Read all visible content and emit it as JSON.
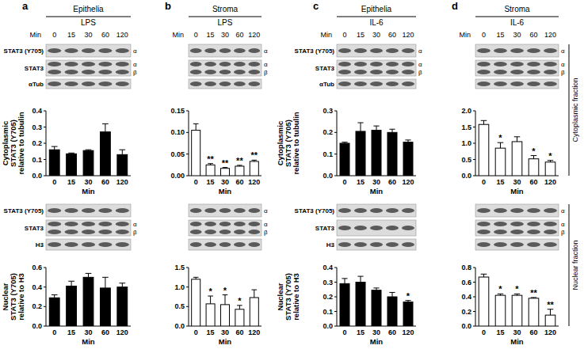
{
  "panels": [
    {
      "letter": "a",
      "tissue": "Epithelia",
      "treatment": "LPS",
      "time_label": "Min",
      "times": [
        0,
        15,
        30,
        60,
        120
      ],
      "cyto_blots": [
        {
          "label": "STAT3 (Y705)",
          "bands": [
            "α"
          ]
        },
        {
          "label": "STAT3",
          "bands": [
            "α",
            "β"
          ]
        },
        {
          "label": "αTub"
        }
      ],
      "nuc_blots": [
        {
          "label": "STAT3 (Y705)"
        },
        {
          "label": "STAT3",
          "bands": [
            "α",
            "β"
          ]
        },
        {
          "label": "H3"
        }
      ]
    },
    {
      "letter": "b",
      "tissue": "Stroma",
      "treatment": "LPS",
      "time_label": "Min",
      "times": [
        0,
        15,
        30,
        60,
        120
      ],
      "cyto_blots": [
        {
          "bands": [
            "α"
          ]
        },
        {
          "bands": [
            "α",
            "β"
          ]
        },
        {}
      ],
      "nuc_blots": [
        {
          "bands": [
            "α"
          ]
        },
        {
          "bands": [
            "α",
            "β"
          ]
        },
        {}
      ]
    },
    {
      "letter": "c",
      "tissue": "Epithelia",
      "treatment": "IL-6",
      "time_label": "Min",
      "times": [
        0,
        15,
        30,
        60,
        120
      ],
      "cyto_blots": [
        {
          "label": "STAT3 (Y705)",
          "bands": [
            "α"
          ]
        },
        {
          "label": "STAT3",
          "bands": [
            "α",
            "β"
          ]
        },
        {
          "label": "αTub"
        }
      ],
      "nuc_blots": [
        {
          "label": "STAT3 (Y705)"
        },
        {
          "label": "STAT3"
        },
        {
          "label": "H3"
        }
      ]
    },
    {
      "letter": "d",
      "tissue": "Stroma",
      "treatment": "IL-6",
      "time_label": "Min",
      "times": [
        0,
        15,
        30,
        60,
        120
      ],
      "cyto_blots": [
        {
          "bands": [
            "α"
          ]
        },
        {
          "bands": [
            "α",
            "β"
          ]
        },
        {}
      ],
      "nuc_blots": [
        {
          "bands": [
            "α"
          ]
        },
        {
          "bands": [
            "α",
            "β"
          ]
        },
        {}
      ]
    }
  ],
  "fractions": [
    "Cytoplasmic fraction",
    "Nuclear fraction"
  ],
  "chart_data": [
    {
      "type": "bar",
      "y_label": [
        "Cytoplasmic",
        "STAT3 (Y705)",
        "relative to tubulin"
      ],
      "x_label": "Min",
      "categories": [
        "0",
        "15",
        "30",
        "60",
        "120"
      ],
      "values": [
        0.16,
        0.135,
        0.155,
        0.27,
        0.13
      ],
      "errors": [
        0.02,
        0.005,
        0.005,
        0.05,
        0.03
      ],
      "annotations": [
        null,
        null,
        null,
        null,
        null
      ],
      "color": "#000000",
      "ylim": [
        0,
        0.4
      ],
      "yticks": [
        {
          "value": 0,
          "label": "0.0"
        },
        0.1,
        0.2,
        0.3,
        0.4
      ]
    },
    {
      "type": "bar",
      "y_label": [
        "Nuclear",
        "STAT3 (Y705)",
        "relative to H3"
      ],
      "x_label": "Min",
      "categories": [
        "0",
        "15",
        "30",
        "60",
        "120"
      ],
      "values": [
        0.29,
        0.41,
        0.5,
        0.39,
        0.4
      ],
      "errors": [
        0.03,
        0.05,
        0.04,
        0.11,
        0.04
      ],
      "annotations": [
        null,
        null,
        null,
        null,
        null
      ],
      "color": "#000000",
      "ylim": [
        0,
        0.6
      ],
      "yticks": [
        {
          "value": 0,
          "label": "0.0"
        },
        0.2,
        0.4,
        0.6
      ]
    },
    {
      "type": "bar",
      "x_label": "Min",
      "categories": [
        "0",
        "15",
        "30",
        "60",
        "120"
      ],
      "values": [
        0.105,
        0.025,
        0.017,
        0.022,
        0.033
      ],
      "errors": [
        0.015,
        0.003,
        0.002,
        0.002,
        0.003
      ],
      "annotations": [
        null,
        "**",
        "**",
        "**",
        "**"
      ],
      "color": "#ffffff",
      "ylim": [
        0,
        0.15
      ],
      "yticks": [
        {
          "value": 0,
          "label": "0.00"
        },
        0.05,
        {
          "value": 0.1,
          "label": "0.10"
        },
        0.15
      ]
    },
    {
      "type": "bar",
      "x_label": "Min",
      "categories": [
        "0",
        "15",
        "30",
        "60",
        "120"
      ],
      "values": [
        1.2,
        0.57,
        0.55,
        0.43,
        0.73
      ],
      "errors": [
        0.05,
        0.2,
        0.25,
        0.1,
        0.2
      ],
      "annotations": [
        null,
        "*",
        "*",
        "*",
        null
      ],
      "color": "#ffffff",
      "ylim": [
        0,
        1.5
      ],
      "yticks": [
        {
          "value": 0,
          "label": "0.0"
        },
        0.5,
        {
          "value": 1,
          "label": "1.0"
        },
        1.5
      ]
    },
    {
      "type": "bar",
      "y_label": [
        "Cytoplasmic",
        "STAT3 (Y705)",
        "relative to tubulin"
      ],
      "x_label": "Min",
      "categories": [
        "0",
        "15",
        "30",
        "60",
        "120"
      ],
      "values": [
        0.15,
        0.205,
        0.21,
        0.2,
        0.155
      ],
      "errors": [
        0.005,
        0.04,
        0.02,
        0.015,
        0.01
      ],
      "annotations": [
        null,
        null,
        null,
        null,
        null
      ],
      "color": "#000000",
      "ylim": [
        0,
        0.3
      ],
      "yticks": [
        {
          "value": 0,
          "label": "0.0"
        },
        0.1,
        0.2,
        0.3
      ]
    },
    {
      "type": "bar",
      "y_label": [
        "Nuclear",
        "STAT3 (Y705)",
        "relative to H3"
      ],
      "x_label": "Min",
      "categories": [
        "0",
        "15",
        "30",
        "60",
        "120"
      ],
      "values": [
        0.29,
        0.3,
        0.245,
        0.2,
        0.165
      ],
      "errors": [
        0.035,
        0.04,
        0.015,
        0.03,
        0.01
      ],
      "annotations": [
        null,
        null,
        null,
        null,
        "*"
      ],
      "color": "#000000",
      "ylim": [
        0,
        0.4
      ],
      "yticks": [
        {
          "value": 0,
          "label": "0.0"
        },
        0.1,
        0.2,
        0.3,
        0.4
      ]
    },
    {
      "type": "bar",
      "x_label": "Min",
      "categories": [
        "0",
        "15",
        "30",
        "60",
        "120"
      ],
      "values": [
        1.58,
        0.85,
        1.05,
        0.52,
        0.42
      ],
      "errors": [
        0.12,
        0.17,
        0.15,
        0.1,
        0.05
      ],
      "annotations": [
        null,
        "*",
        null,
        "*",
        "*"
      ],
      "color": "#ffffff",
      "ylim": [
        0,
        2
      ],
      "yticks": [
        {
          "value": 0,
          "label": "0.0"
        },
        0.5,
        {
          "value": 1,
          "label": "1.0"
        },
        1.5,
        {
          "value": 2,
          "label": "2.0"
        }
      ]
    },
    {
      "type": "bar",
      "x_label": "Min",
      "categories": [
        "0",
        "15",
        "30",
        "60",
        "120"
      ],
      "values": [
        0.67,
        0.42,
        0.42,
        0.38,
        0.15
      ],
      "errors": [
        0.04,
        0.02,
        0.02,
        0.01,
        0.08
      ],
      "annotations": [
        null,
        "*",
        "*",
        "**",
        "**"
      ],
      "color": "#ffffff",
      "ylim": [
        0,
        0.8
      ],
      "yticks": [
        {
          "value": 0,
          "label": "0.0"
        },
        0.2,
        0.4,
        0.6,
        0.8
      ]
    }
  ]
}
